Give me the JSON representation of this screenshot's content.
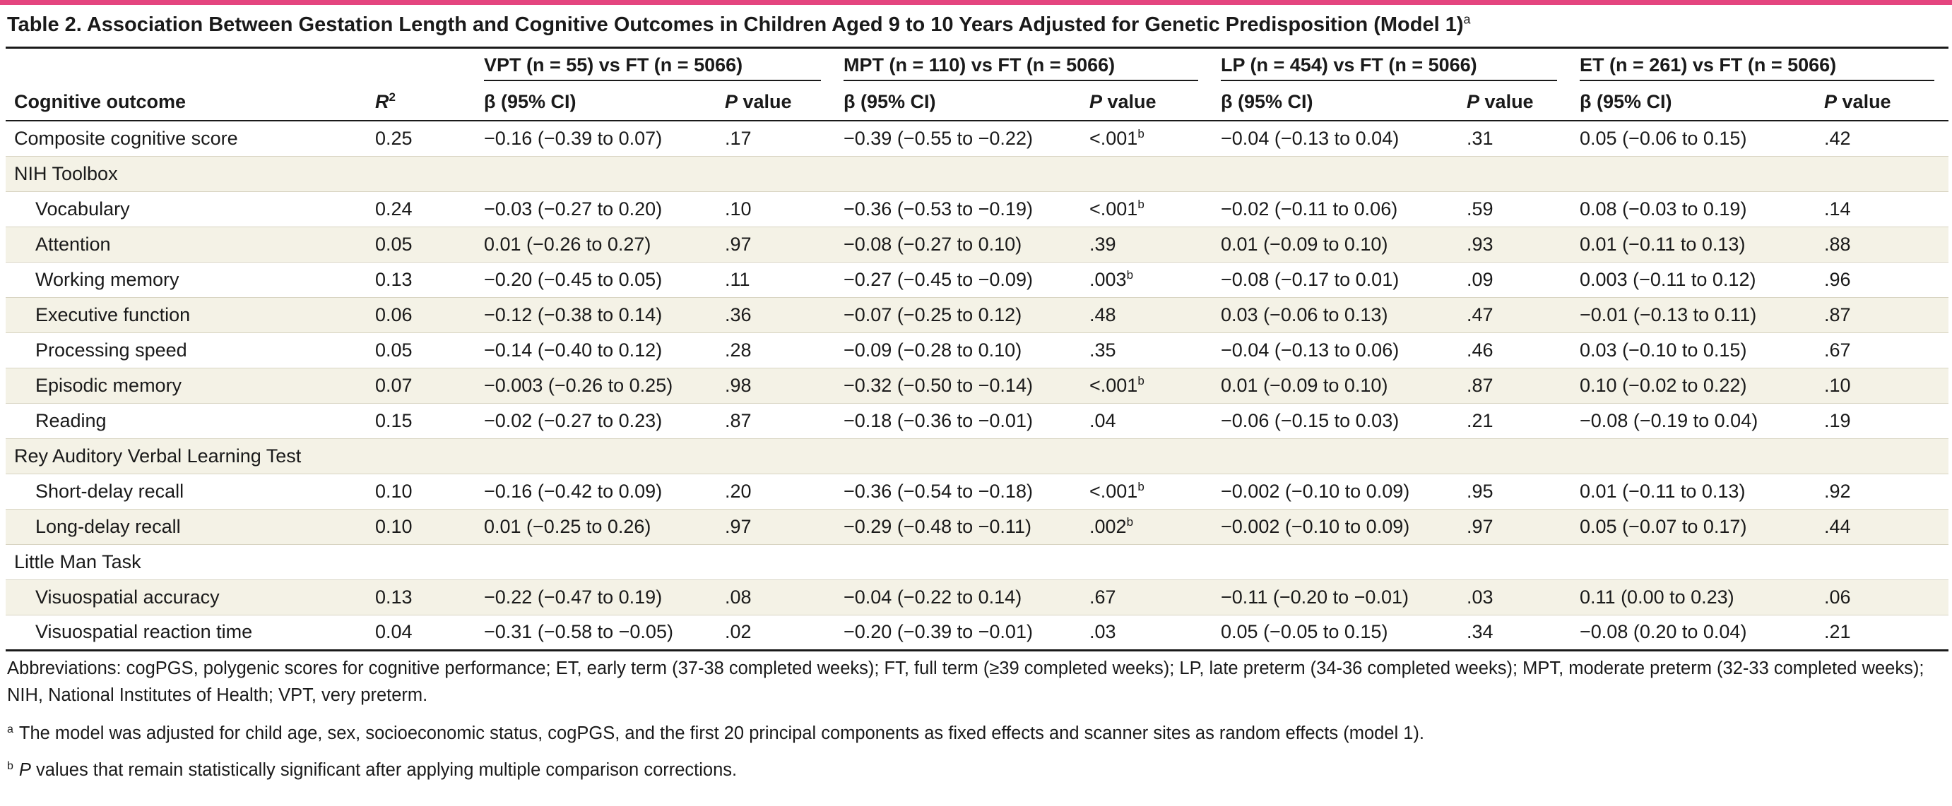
{
  "title": "Table 2. Association Between Gestation Length and Cognitive Outcomes in Children Aged 9 to 10 Years Adjusted for Genetic Predisposition (Model 1)",
  "title_footnote_mark": "a",
  "accent_color": "#e4457f",
  "header": {
    "outcome_label": "Cognitive outcome",
    "r2_base": "R",
    "r2_exp": "2",
    "groups": [
      "VPT (n = 55) vs FT (n = 5066)",
      "MPT (n = 110) vs FT (n = 5066)",
      "LP (n = 454) vs FT (n = 5066)",
      "ET (n = 261) vs FT (n = 5066)"
    ],
    "beta_label": "β (95% CI)",
    "p_italic": "P",
    "p_rest": " value"
  },
  "rows": [
    {
      "type": "data",
      "label": "Composite cognitive score",
      "r2": "0.25",
      "cells": [
        [
          "−0.16 (−0.39 to 0.07)",
          ".17",
          ""
        ],
        [
          "−0.39 (−0.55 to −0.22)",
          "<.001",
          "b"
        ],
        [
          "−0.04 (−0.13 to 0.04)",
          ".31",
          ""
        ],
        [
          "0.05 (−0.06 to 0.15)",
          ".42",
          ""
        ]
      ]
    },
    {
      "type": "section",
      "label": "NIH Toolbox"
    },
    {
      "type": "data",
      "label": "Vocabulary",
      "r2": "0.24",
      "cells": [
        [
          "−0.03 (−0.27 to 0.20)",
          ".10",
          ""
        ],
        [
          "−0.36 (−0.53 to −0.19)",
          "<.001",
          "b"
        ],
        [
          "−0.02 (−0.11 to 0.06)",
          ".59",
          ""
        ],
        [
          "0.08 (−0.03 to 0.19)",
          ".14",
          ""
        ]
      ]
    },
    {
      "type": "data",
      "label": "Attention",
      "r2": "0.05",
      "cells": [
        [
          "0.01 (−0.26 to 0.27)",
          ".97",
          ""
        ],
        [
          "−0.08 (−0.27 to 0.10)",
          ".39",
          ""
        ],
        [
          "0.01 (−0.09 to 0.10)",
          ".93",
          ""
        ],
        [
          "0.01 (−0.11 to 0.13)",
          ".88",
          ""
        ]
      ]
    },
    {
      "type": "data",
      "label": "Working memory",
      "r2": "0.13",
      "cells": [
        [
          "−0.20 (−0.45 to 0.05)",
          ".11",
          ""
        ],
        [
          "−0.27 (−0.45 to −0.09)",
          ".003",
          "b"
        ],
        [
          "−0.08 (−0.17 to 0.01)",
          ".09",
          ""
        ],
        [
          "0.003 (−0.11 to 0.12)",
          ".96",
          ""
        ]
      ]
    },
    {
      "type": "data",
      "label": "Executive function",
      "r2": "0.06",
      "cells": [
        [
          "−0.12 (−0.38 to 0.14)",
          ".36",
          ""
        ],
        [
          "−0.07 (−0.25 to 0.12)",
          ".48",
          ""
        ],
        [
          "0.03 (−0.06 to 0.13)",
          ".47",
          ""
        ],
        [
          "−0.01 (−0.13 to 0.11)",
          ".87",
          ""
        ]
      ]
    },
    {
      "type": "data",
      "label": "Processing speed",
      "r2": "0.05",
      "cells": [
        [
          "−0.14 (−0.40 to 0.12)",
          ".28",
          ""
        ],
        [
          "−0.09 (−0.28 to 0.10)",
          ".35",
          ""
        ],
        [
          "−0.04 (−0.13 to 0.06)",
          ".46",
          ""
        ],
        [
          "0.03 (−0.10 to 0.15)",
          ".67",
          ""
        ]
      ]
    },
    {
      "type": "data",
      "label": "Episodic memory",
      "r2": "0.07",
      "cells": [
        [
          "−0.003 (−0.26 to 0.25)",
          ".98",
          ""
        ],
        [
          "−0.32 (−0.50 to −0.14)",
          "<.001",
          "b"
        ],
        [
          "0.01 (−0.09 to 0.10)",
          ".87",
          ""
        ],
        [
          "0.10 (−0.02 to 0.22)",
          ".10",
          ""
        ]
      ]
    },
    {
      "type": "data",
      "label": "Reading",
      "r2": "0.15",
      "cells": [
        [
          "−0.02 (−0.27 to 0.23)",
          ".87",
          ""
        ],
        [
          "−0.18 (−0.36 to −0.01)",
          ".04",
          ""
        ],
        [
          "−0.06 (−0.15 to 0.03)",
          ".21",
          ""
        ],
        [
          "−0.08 (−0.19 to 0.04)",
          ".19",
          ""
        ]
      ]
    },
    {
      "type": "section",
      "label": "Rey Auditory Verbal Learning Test"
    },
    {
      "type": "data",
      "label": "Short-delay recall",
      "r2": "0.10",
      "cells": [
        [
          "−0.16 (−0.42 to 0.09)",
          ".20",
          ""
        ],
        [
          "−0.36 (−0.54 to −0.18)",
          "<.001",
          "b"
        ],
        [
          "−0.002 (−0.10 to 0.09)",
          ".95",
          ""
        ],
        [
          "0.01 (−0.11 to 0.13)",
          ".92",
          ""
        ]
      ]
    },
    {
      "type": "data",
      "label": "Long-delay recall",
      "r2": "0.10",
      "cells": [
        [
          "0.01 (−0.25 to 0.26)",
          ".97",
          ""
        ],
        [
          "−0.29 (−0.48 to −0.11)",
          ".002",
          "b"
        ],
        [
          "−0.002 (−0.10 to 0.09)",
          ".97",
          ""
        ],
        [
          "0.05 (−0.07 to 0.17)",
          ".44",
          ""
        ]
      ]
    },
    {
      "type": "section",
      "label": "Little Man Task"
    },
    {
      "type": "data",
      "label": "Visuospatial accuracy",
      "r2": "0.13",
      "cells": [
        [
          "−0.22 (−0.47 to 0.19)",
          ".08",
          ""
        ],
        [
          "−0.04 (−0.22 to 0.14)",
          ".67",
          ""
        ],
        [
          "−0.11 (−0.20 to −0.01)",
          ".03",
          ""
        ],
        [
          "0.11 (0.00 to 0.23)",
          ".06",
          ""
        ]
      ]
    },
    {
      "type": "data",
      "label": "Visuospatial reaction time",
      "r2": "0.04",
      "cells": [
        [
          "−0.31 (−0.58 to −0.05)",
          ".02",
          ""
        ],
        [
          "−0.20 (−0.39 to −0.01)",
          ".03",
          ""
        ],
        [
          "0.05 (−0.05 to 0.15)",
          ".34",
          ""
        ],
        [
          "−0.08 (0.20 to 0.04)",
          ".21",
          ""
        ]
      ]
    }
  ],
  "notes": {
    "abbreviations": "Abbreviations: cogPGS, polygenic scores for cognitive performance; ET, early term (37-38 completed weeks); FT, full term (≥39 completed weeks); LP, late preterm (34-36 completed weeks); MPT, moderate preterm (32-33 completed weeks); NIH, National Institutes of Health; VPT, very preterm.",
    "fn_a_mark": "a",
    "fn_a": "The model was adjusted for child age, sex, socioeconomic status, cogPGS, and the first 20 principal components as fixed effects and scanner sites as random effects (model 1).",
    "fn_b_mark": "b",
    "fn_b_italic": "P",
    "fn_b": " values that remain statistically significant after applying multiple comparison corrections."
  }
}
